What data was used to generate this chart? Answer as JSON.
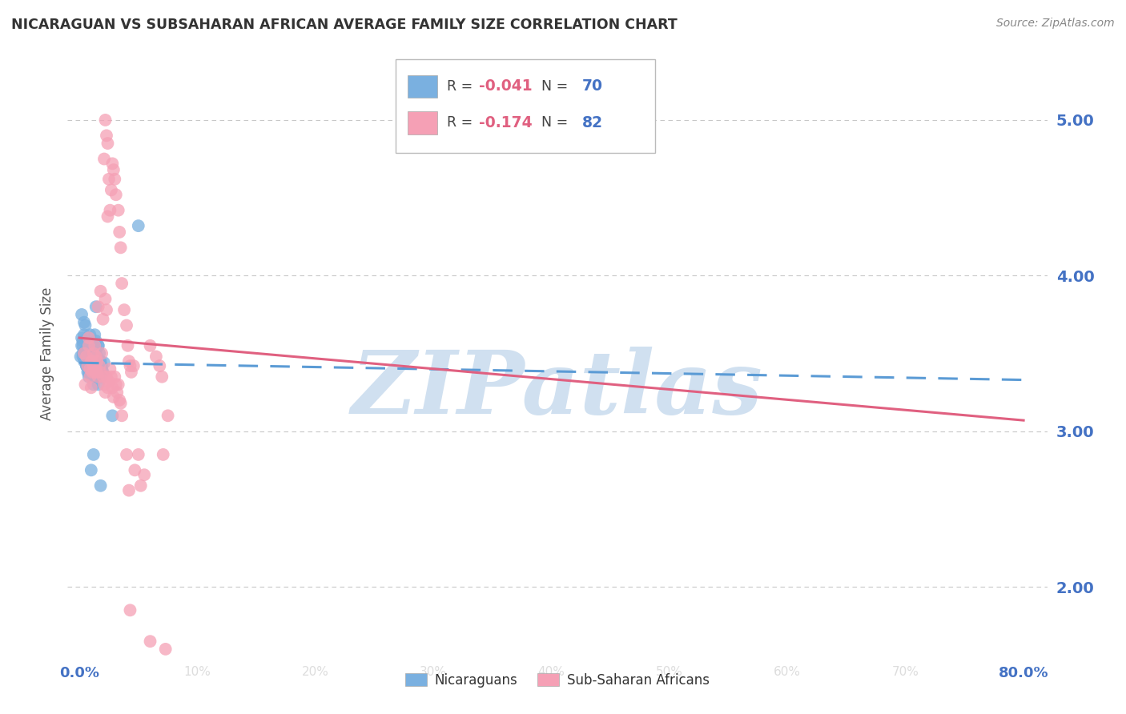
{
  "title": "NICARAGUAN VS SUBSAHARAN AFRICAN AVERAGE FAMILY SIZE CORRELATION CHART",
  "source": "Source: ZipAtlas.com",
  "ylabel": "Average Family Size",
  "yticks": [
    2.0,
    3.0,
    4.0,
    5.0
  ],
  "xlim": [
    -0.01,
    0.82
  ],
  "ylim": [
    1.55,
    5.45
  ],
  "watermark": "ZIPatlas",
  "blue_scatter": [
    [
      0.002,
      3.75
    ],
    [
      0.003,
      3.55
    ],
    [
      0.004,
      3.62
    ],
    [
      0.004,
      3.7
    ],
    [
      0.005,
      3.68
    ],
    [
      0.005,
      3.52
    ],
    [
      0.006,
      3.48
    ],
    [
      0.006,
      3.42
    ],
    [
      0.007,
      3.5
    ],
    [
      0.007,
      3.55
    ],
    [
      0.007,
      3.45
    ],
    [
      0.008,
      3.38
    ],
    [
      0.008,
      3.42
    ],
    [
      0.008,
      3.35
    ],
    [
      0.009,
      3.4
    ],
    [
      0.009,
      3.5
    ],
    [
      0.009,
      3.38
    ],
    [
      0.01,
      3.42
    ],
    [
      0.01,
      3.36
    ],
    [
      0.01,
      3.4
    ],
    [
      0.011,
      3.45
    ],
    [
      0.011,
      3.38
    ],
    [
      0.011,
      3.42
    ],
    [
      0.012,
      3.35
    ],
    [
      0.012,
      3.36
    ],
    [
      0.012,
      3.3
    ],
    [
      0.013,
      3.55
    ],
    [
      0.013,
      3.62
    ],
    [
      0.014,
      3.8
    ],
    [
      0.014,
      3.58
    ],
    [
      0.015,
      3.4
    ],
    [
      0.015,
      3.35
    ],
    [
      0.016,
      3.3
    ],
    [
      0.016,
      3.55
    ],
    [
      0.017,
      3.45
    ],
    [
      0.017,
      3.5
    ],
    [
      0.018,
      3.4
    ],
    [
      0.018,
      3.35
    ],
    [
      0.019,
      3.42
    ],
    [
      0.019,
      3.38
    ],
    [
      0.004,
      3.45
    ],
    [
      0.005,
      3.48
    ],
    [
      0.006,
      3.42
    ],
    [
      0.007,
      3.38
    ],
    [
      0.008,
      3.46
    ],
    [
      0.003,
      3.5
    ],
    [
      0.003,
      3.48
    ],
    [
      0.009,
      3.62
    ],
    [
      0.01,
      3.55
    ],
    [
      0.011,
      3.48
    ],
    [
      0.012,
      3.44
    ],
    [
      0.013,
      3.46
    ],
    [
      0.014,
      3.52
    ],
    [
      0.015,
      3.48
    ],
    [
      0.016,
      3.55
    ],
    [
      0.017,
      3.42
    ],
    [
      0.018,
      3.45
    ],
    [
      0.019,
      3.4
    ],
    [
      0.02,
      3.38
    ],
    [
      0.021,
      3.44
    ],
    [
      0.01,
      2.75
    ],
    [
      0.012,
      2.85
    ],
    [
      0.018,
      2.65
    ],
    [
      0.028,
      3.1
    ],
    [
      0.002,
      3.55
    ],
    [
      0.001,
      3.48
    ],
    [
      0.002,
      3.6
    ],
    [
      0.003,
      3.58
    ],
    [
      0.05,
      4.32
    ]
  ],
  "pink_scatter": [
    [
      0.004,
      3.5
    ],
    [
      0.005,
      3.3
    ],
    [
      0.006,
      3.48
    ],
    [
      0.007,
      3.42
    ],
    [
      0.008,
      3.55
    ],
    [
      0.008,
      3.6
    ],
    [
      0.009,
      3.4
    ],
    [
      0.009,
      3.35
    ],
    [
      0.01,
      3.28
    ],
    [
      0.01,
      3.45
    ],
    [
      0.011,
      3.38
    ],
    [
      0.011,
      3.45
    ],
    [
      0.012,
      3.5
    ],
    [
      0.012,
      3.42
    ],
    [
      0.013,
      3.38
    ],
    [
      0.013,
      3.55
    ],
    [
      0.014,
      3.48
    ],
    [
      0.014,
      3.4
    ],
    [
      0.015,
      3.45
    ],
    [
      0.015,
      3.38
    ],
    [
      0.016,
      3.35
    ],
    [
      0.017,
      3.42
    ],
    [
      0.018,
      3.38
    ],
    [
      0.019,
      3.5
    ],
    [
      0.02,
      3.35
    ],
    [
      0.021,
      3.3
    ],
    [
      0.022,
      3.25
    ],
    [
      0.023,
      3.35
    ],
    [
      0.024,
      3.28
    ],
    [
      0.025,
      3.32
    ],
    [
      0.026,
      3.4
    ],
    [
      0.027,
      3.35
    ],
    [
      0.028,
      3.28
    ],
    [
      0.029,
      3.22
    ],
    [
      0.03,
      3.35
    ],
    [
      0.031,
      3.3
    ],
    [
      0.032,
      3.25
    ],
    [
      0.033,
      3.3
    ],
    [
      0.034,
      3.2
    ],
    [
      0.035,
      3.18
    ],
    [
      0.036,
      3.1
    ],
    [
      0.04,
      2.85
    ],
    [
      0.042,
      2.62
    ],
    [
      0.047,
      2.75
    ],
    [
      0.05,
      2.85
    ],
    [
      0.052,
      2.65
    ],
    [
      0.055,
      2.72
    ],
    [
      0.043,
      1.85
    ],
    [
      0.06,
      1.65
    ],
    [
      0.073,
      1.6
    ],
    [
      0.016,
      3.8
    ],
    [
      0.018,
      3.9
    ],
    [
      0.02,
      3.72
    ],
    [
      0.022,
      3.85
    ],
    [
      0.023,
      3.78
    ],
    [
      0.024,
      4.38
    ],
    [
      0.025,
      4.62
    ],
    [
      0.026,
      4.42
    ],
    [
      0.027,
      4.55
    ],
    [
      0.029,
      4.68
    ],
    [
      0.021,
      4.75
    ],
    [
      0.022,
      5.0
    ],
    [
      0.023,
      4.9
    ],
    [
      0.024,
      4.85
    ],
    [
      0.028,
      4.72
    ],
    [
      0.03,
      4.62
    ],
    [
      0.031,
      4.52
    ],
    [
      0.033,
      4.42
    ],
    [
      0.034,
      4.28
    ],
    [
      0.035,
      4.18
    ],
    [
      0.036,
      3.95
    ],
    [
      0.038,
      3.78
    ],
    [
      0.04,
      3.68
    ],
    [
      0.041,
      3.55
    ],
    [
      0.042,
      3.45
    ],
    [
      0.043,
      3.42
    ],
    [
      0.044,
      3.38
    ],
    [
      0.046,
      3.42
    ],
    [
      0.06,
      3.55
    ],
    [
      0.065,
      3.48
    ],
    [
      0.068,
      3.42
    ],
    [
      0.07,
      3.35
    ],
    [
      0.071,
      2.85
    ],
    [
      0.075,
      3.1
    ]
  ],
  "blue_line_x": [
    0.0,
    0.8
  ],
  "blue_line_y": [
    3.44,
    3.33
  ],
  "pink_line_x": [
    0.0,
    0.8
  ],
  "pink_line_y": [
    3.6,
    3.07
  ],
  "blue_color": "#7ab0e0",
  "pink_color": "#f5a0b5",
  "blue_line_color": "#5b9bd5",
  "pink_line_color": "#e06080",
  "title_color": "#333333",
  "axis_color": "#4472c4",
  "grid_color": "#c8c8c8",
  "watermark_color": "#d0e0f0",
  "background_color": "#ffffff",
  "legend_r_blue": "-0.041",
  "legend_n_blue": "70",
  "legend_r_pink": "-0.174",
  "legend_n_pink": "82"
}
